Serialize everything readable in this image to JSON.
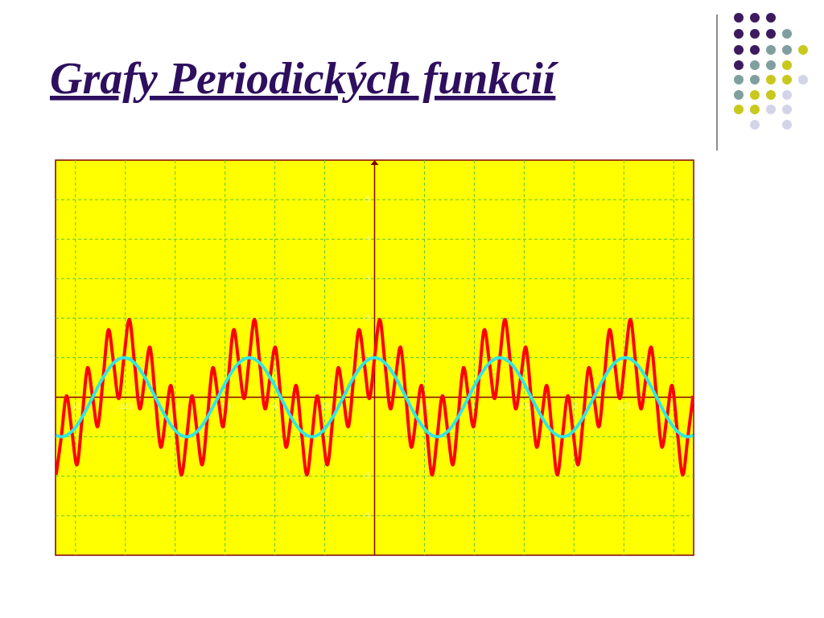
{
  "chart_data": {
    "type": "line",
    "title": "Grafy Periodických funkcií",
    "x": [
      -15.97,
      -15.71,
      -15.45,
      -15.18,
      -14.92,
      -14.66,
      -14.4,
      -14.14,
      -13.88,
      -13.61,
      -13.35,
      -13.09,
      -12.83,
      -12.57,
      -12.3,
      -12.04,
      -11.78,
      -11.52,
      -11.26,
      -11,
      -10.73,
      -10.47,
      -10.21,
      -9.95,
      -9.69,
      -9.42,
      -9.16,
      -8.9,
      -8.64,
      -8.38,
      -8.12,
      -7.85,
      -7.59,
      -7.33,
      -7.07,
      -6.81,
      -6.54,
      -6.28,
      -6.02,
      -5.76,
      -5.5,
      -5.24,
      -4.97,
      -4.71,
      -4.45,
      -4.19,
      -3.93,
      -3.67,
      -3.4,
      -3.14,
      -2.88,
      -2.62,
      -2.36,
      -2.09,
      -1.83,
      -1.57,
      -1.31,
      -1.05,
      -0.79,
      -0.52,
      -0.26,
      0,
      0.26,
      0.52,
      0.79,
      1.05,
      1.31,
      1.57,
      1.83,
      2.09,
      2.36,
      2.62,
      2.88,
      3.14,
      3.4,
      3.67,
      3.93,
      4.19,
      4.45,
      4.71,
      4.97,
      5.24,
      5.5,
      5.76,
      6.02,
      6.28,
      6.54,
      6.81,
      7.07,
      7.33,
      7.59,
      7.85,
      8.12,
      8.38,
      8.64,
      8.9,
      9.16,
      9.42,
      9.69,
      9.95,
      10.21,
      10.47,
      10.73,
      11,
      11.26,
      11.52,
      11.78,
      12.04,
      12.3,
      12.57,
      12.83,
      13.09,
      13.35,
      13.61,
      13.88,
      14.14,
      14.4,
      14.66,
      14.92,
      15.18,
      15.45,
      15.71,
      15.97
    ],
    "series": [
      {
        "color": "#ff0000",
        "values": [
          -1.966,
          -1,
          0.034,
          -0.866,
          -1.707,
          -0.5,
          0.741,
          0,
          -0.741,
          0.5,
          1.707,
          0.866,
          -0.034,
          1,
          1.966,
          0.866,
          -0.293,
          0.5,
          1.259,
          0,
          -1.259,
          -0.5,
          0.293,
          -0.866,
          -1.966,
          -1,
          0.034,
          -0.866,
          -1.707,
          -0.5,
          0.741,
          0,
          -0.741,
          0.5,
          1.707,
          0.866,
          -0.034,
          1,
          1.966,
          0.866,
          -0.293,
          0.5,
          1.259,
          0,
          -1.259,
          -0.5,
          0.293,
          -0.866,
          -1.966,
          -1,
          0.034,
          -0.866,
          -1.707,
          -0.5,
          0.741,
          0,
          -0.741,
          0.5,
          1.707,
          0.866,
          -0.034,
          1,
          1.966,
          0.866,
          -0.293,
          0.5,
          1.259,
          0,
          -1.259,
          -0.5,
          0.293,
          -0.866,
          -1.966,
          -1,
          0.034,
          -0.866,
          -1.707,
          -0.5,
          0.741,
          0,
          -0.741,
          0.5,
          1.707,
          0.866,
          -0.034,
          1,
          1.966,
          0.866,
          -0.293,
          0.5,
          1.259,
          0,
          -1.259,
          -0.5,
          0.293,
          -0.866,
          -1.966,
          -1,
          0.034,
          -0.866,
          -1.707,
          -0.5,
          0.741,
          0,
          -0.741,
          0.5,
          1.707,
          0.866,
          -0.034,
          1,
          1.966,
          0.866,
          -0.293,
          0.5,
          1.259,
          0,
          -1.259,
          -0.5,
          0.293,
          -0.866,
          -1.966,
          -1,
          0.034
        ]
      },
      {
        "color": "#33e6e0",
        "values": [
          -0.966,
          -1,
          -0.966,
          -0.866,
          -0.707,
          -0.5,
          -0.259,
          0,
          0.259,
          0.5,
          0.707,
          0.866,
          0.966,
          1,
          0.966,
          0.866,
          0.707,
          0.5,
          0.259,
          0,
          -0.259,
          -0.5,
          -0.707,
          -0.866,
          -0.966,
          -1,
          -0.966,
          -0.866,
          -0.707,
          -0.5,
          -0.259,
          0,
          0.259,
          0.5,
          0.707,
          0.866,
          0.966,
          1,
          0.966,
          0.866,
          0.707,
          0.5,
          0.259,
          0,
          -0.259,
          -0.5,
          -0.707,
          -0.866,
          -0.966,
          -1,
          -0.966,
          -0.866,
          -0.707,
          -0.5,
          -0.259,
          0,
          0.259,
          0.5,
          0.707,
          0.866,
          0.966,
          1,
          0.966,
          0.866,
          0.707,
          0.5,
          0.259,
          0,
          -0.259,
          -0.5,
          -0.707,
          -0.866,
          -0.966,
          -1,
          -0.966,
          -0.866,
          -0.707,
          -0.5,
          -0.259,
          0,
          0.259,
          0.5,
          0.707,
          0.866,
          0.966,
          1,
          0.966,
          0.866,
          0.707,
          0.5,
          0.259,
          0,
          -0.259,
          -0.5,
          -0.707,
          -0.866,
          -0.966,
          -1,
          -0.966,
          -0.866,
          -0.707,
          -0.5,
          -0.259,
          0,
          0.259,
          0.5,
          0.707,
          0.866,
          0.966,
          1,
          0.966,
          0.866,
          0.707,
          0.5,
          0.259,
          0,
          -0.259,
          -0.5,
          -0.707,
          -0.866,
          -0.966,
          -1,
          -0.966
        ]
      }
    ],
    "xlim": [
      -16,
      16
    ],
    "ylim": [
      -4,
      6
    ],
    "xticks": [
      -15,
      -12.5,
      -10,
      -7.5,
      -5,
      -2.5,
      2.5,
      5,
      7.5,
      10,
      12.5,
      15
    ],
    "yticks": [
      -3,
      -2,
      -1,
      1,
      2,
      3,
      4,
      5
    ],
    "grid": true
  }
}
